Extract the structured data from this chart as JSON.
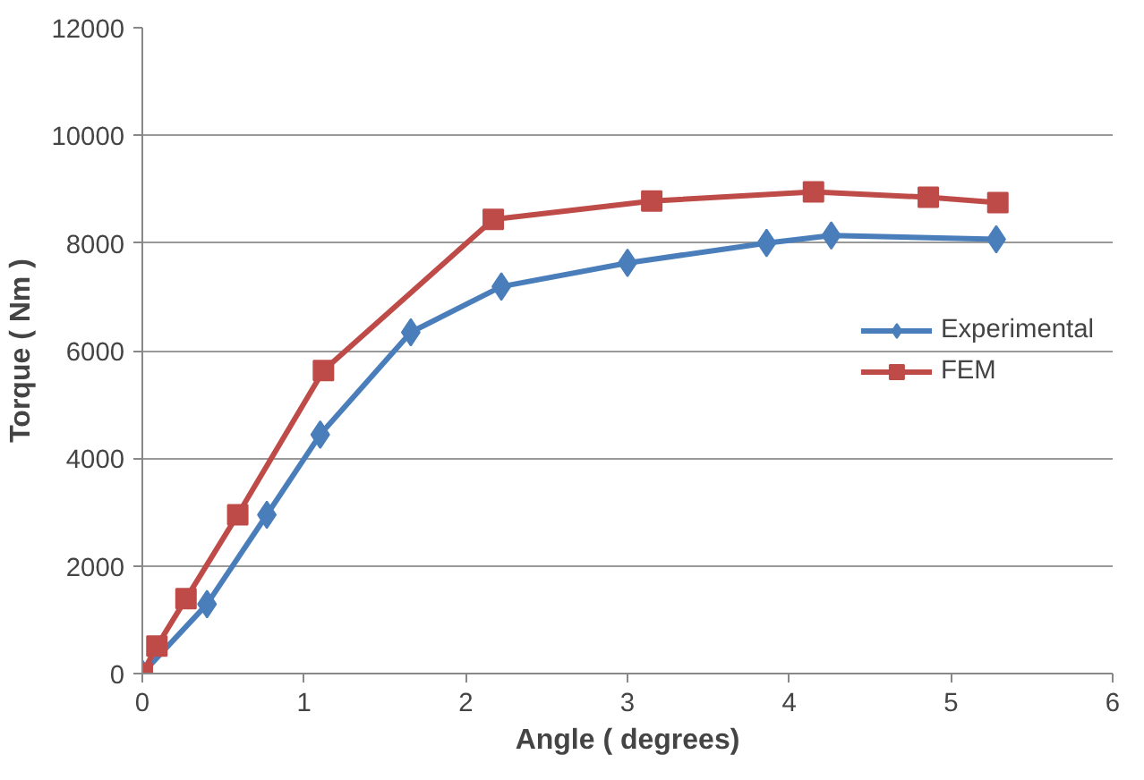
{
  "chart_data": {
    "type": "line",
    "xlabel": "Angle ( degrees)",
    "ylabel": "Torque ( Nm )",
    "xlim": [
      0,
      6
    ],
    "xticks": [
      0,
      1,
      2,
      3,
      4,
      5,
      6
    ],
    "ylim": [
      0,
      12000
    ],
    "yticks": [
      0,
      2000,
      4000,
      6000,
      8000,
      10000,
      12000
    ],
    "grid": "y",
    "legend": "right",
    "line_style": "solid",
    "series": [
      {
        "name": "Experimental",
        "color": "#4a7ebb",
        "marker": "diamond",
        "x": [
          0,
          0.4,
          0.77,
          1.1,
          1.66,
          2.22,
          3.0,
          3.86,
          4.26,
          5.28
        ],
        "values": [
          0,
          1290,
          2950,
          4440,
          6340,
          7190,
          7630,
          8000,
          8140,
          8070
        ]
      },
      {
        "name": "FEM",
        "color": "#be4b48",
        "marker": "square",
        "x": [
          0,
          0.09,
          0.27,
          0.59,
          1.12,
          2.17,
          3.15,
          4.15,
          4.86,
          5.29
        ],
        "values": [
          0,
          510,
          1390,
          2950,
          5630,
          8440,
          8780,
          8950,
          8850,
          8750
        ]
      }
    ]
  }
}
